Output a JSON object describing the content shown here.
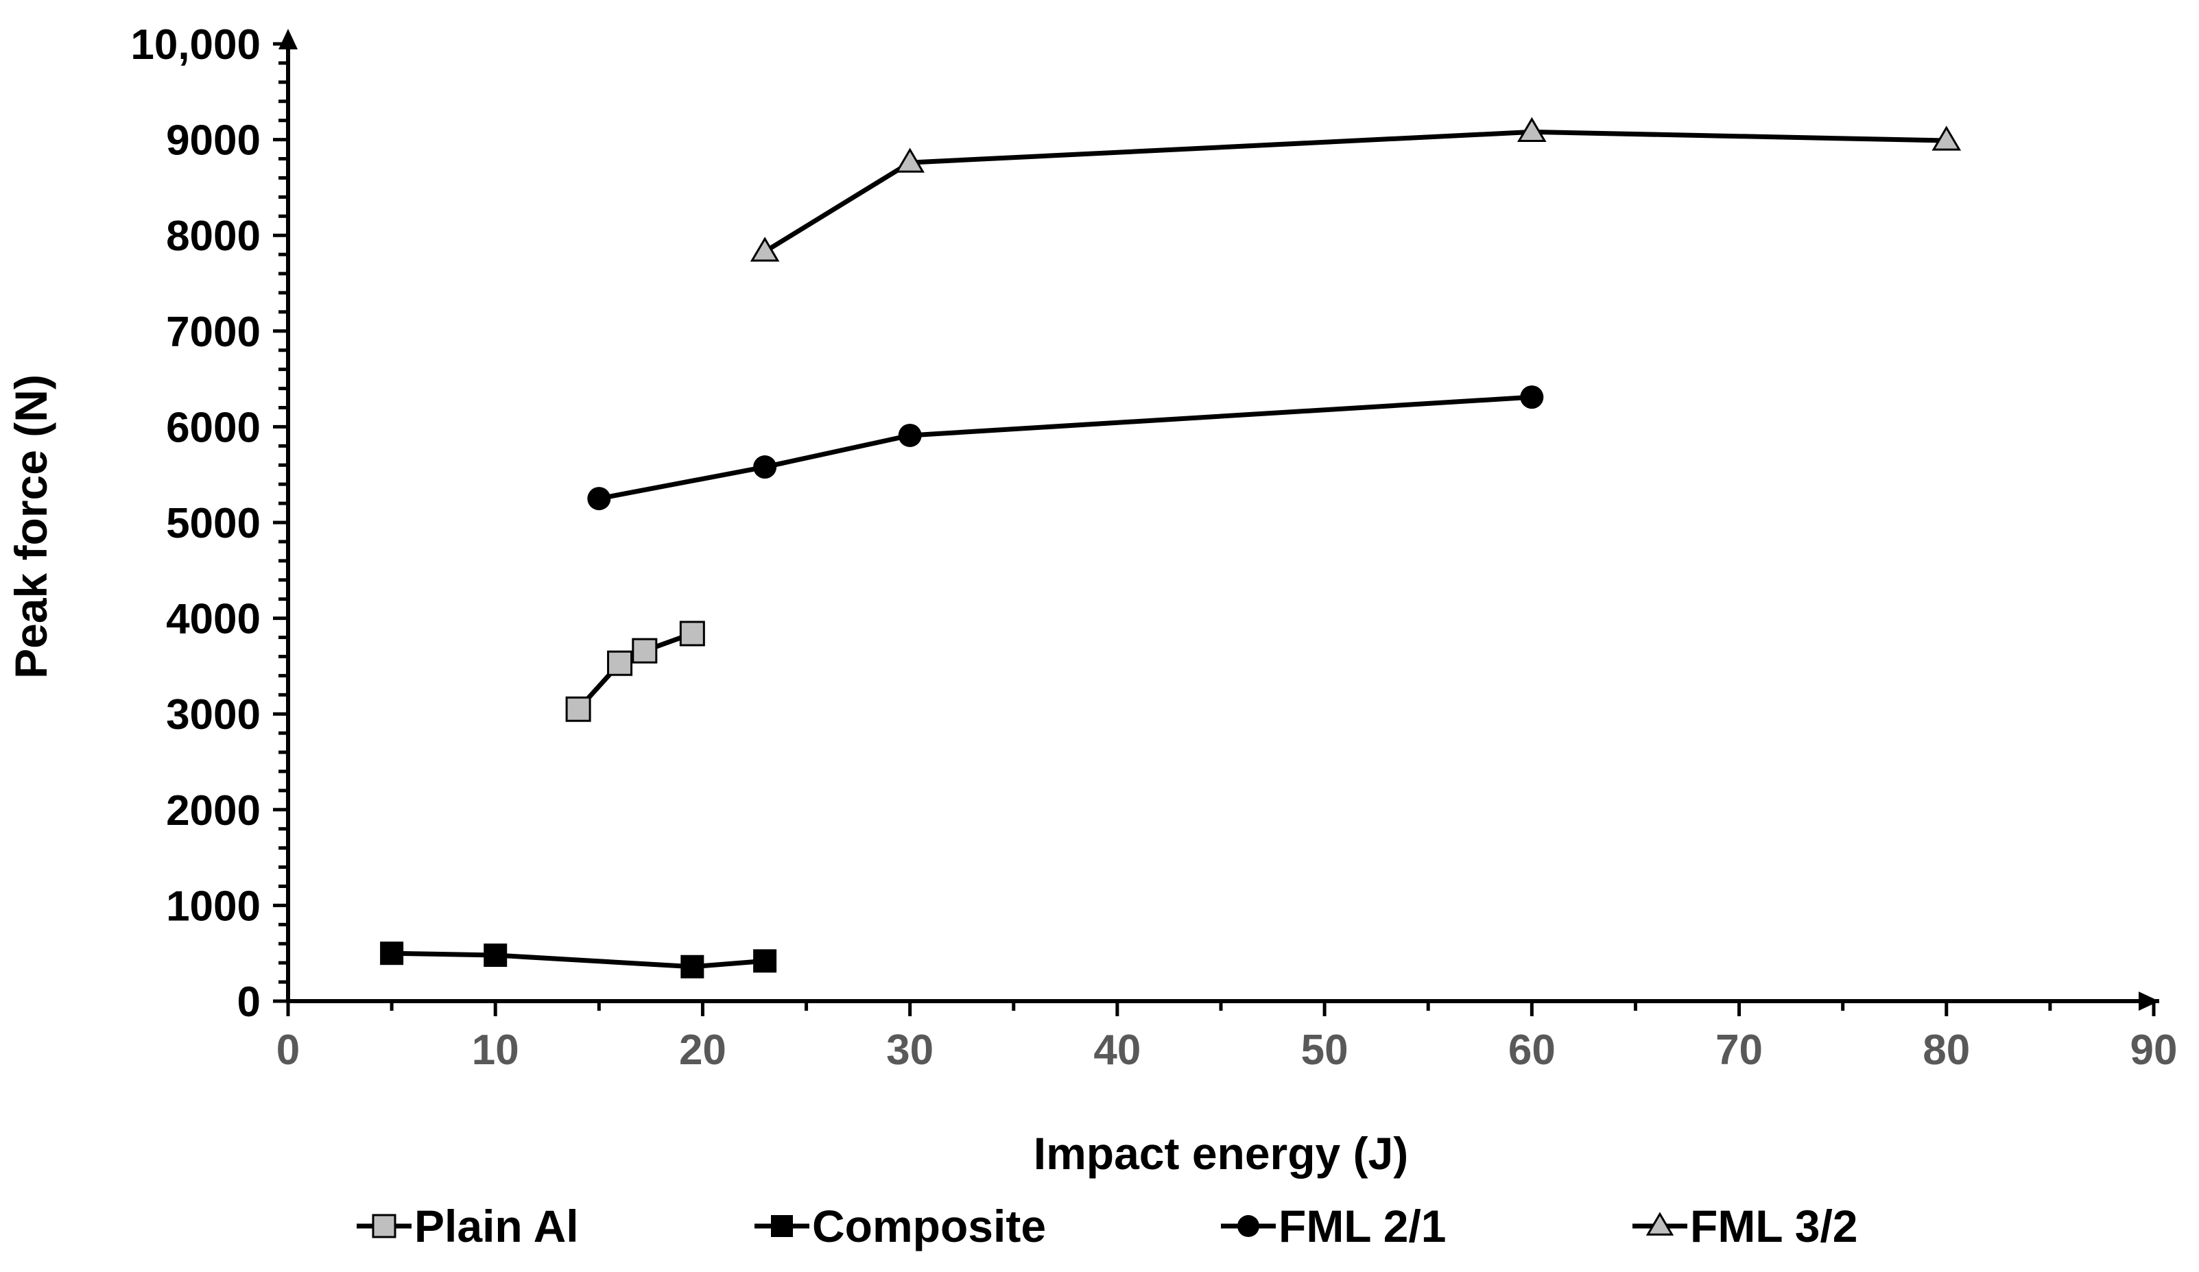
{
  "chart_data": {
    "type": "line",
    "title": "",
    "xlabel": "Impact energy (J)",
    "ylabel": "Peak force (N)",
    "xlim": [
      0,
      90
    ],
    "ylim": [
      0,
      10000
    ],
    "x_ticks": [
      0,
      10,
      20,
      30,
      40,
      50,
      60,
      70,
      80,
      90
    ],
    "x_tick_labels": [
      "0",
      "10",
      "20",
      "30",
      "40",
      "50",
      "60",
      "70",
      "80",
      "90"
    ],
    "y_ticks": [
      0,
      1000,
      2000,
      3000,
      4000,
      5000,
      6000,
      7000,
      8000,
      9000,
      10000
    ],
    "y_tick_labels": [
      "0",
      "1000",
      "2000",
      "3000",
      "4000",
      "5000",
      "6000",
      "7000",
      "8000",
      "9000",
      "10,000"
    ],
    "grid": false,
    "legend_position": "bottom",
    "series": [
      {
        "name": "Plain Al",
        "marker": "square",
        "fill": "#bfbfbf",
        "x": [
          14,
          16,
          17.2,
          19.5
        ],
        "y": [
          3050,
          3530,
          3660,
          3840
        ]
      },
      {
        "name": "Composite",
        "marker": "square",
        "fill": "#000000",
        "x": [
          5,
          10,
          19.5,
          23
        ],
        "y": [
          500,
          480,
          360,
          420
        ]
      },
      {
        "name": "FML 2/1",
        "marker": "circle",
        "fill": "#000000",
        "x": [
          15,
          23,
          30,
          60
        ],
        "y": [
          5250,
          5580,
          5910,
          6310
        ]
      },
      {
        "name": "FML 3/2",
        "marker": "triangle",
        "fill": "#bfbfbf",
        "x": [
          23,
          30,
          60,
          80
        ],
        "y": [
          7830,
          8760,
          9080,
          8990
        ]
      }
    ],
    "colors": {
      "line": "#000000",
      "axis": "#000000",
      "x_tick_text": "#595959",
      "y_tick_text": "#000000"
    }
  }
}
